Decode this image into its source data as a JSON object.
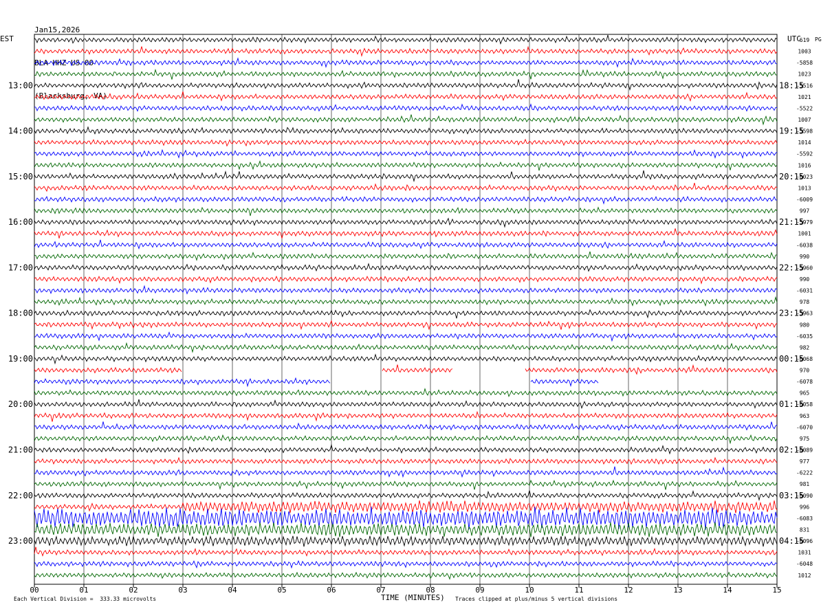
{
  "header": {
    "date": "Jan15,2026",
    "station": "BLA HHZ US 00",
    "location": "(Blacksburg, VA)"
  },
  "labels": {
    "left_timezone": "EST",
    "right_timezone": "UTC",
    "right_column": "PG"
  },
  "footer": {
    "division": "Each Vertical Division =  333.33 microvolts",
    "xlabel": "TIME (MINUTES)",
    "clip_note": "Traces clipped at plus/minus 5 vertical divisions"
  },
  "colors": {
    "trace_cycle": [
      "#000000",
      "#ff0000",
      "#0000ff",
      "#006600"
    ],
    "grid": "#000000",
    "background": "#ffffff"
  },
  "chart_data": {
    "type": "line",
    "subtype": "helicorder",
    "title": "",
    "xlabel": "TIME (MINUTES)",
    "ylabel": "",
    "xlim": [
      0,
      15
    ],
    "x_ticks": [
      "00",
      "01",
      "02",
      "03",
      "04",
      "05",
      "06",
      "07",
      "08",
      "09",
      "10",
      "11",
      "12",
      "13",
      "14",
      "15"
    ],
    "minutes_per_line": 15,
    "line_count": 48,
    "grid": true,
    "left_hour_labels": [
      "13:00",
      "14:00",
      "15:00",
      "16:00",
      "17:00",
      "18:00",
      "19:00",
      "20:00",
      "21:00",
      "22:00",
      "23:00"
    ],
    "right_hour_labels": [
      "18:15",
      "19:15",
      "20:15",
      "21:15",
      "22:15",
      "23:15",
      "00:15",
      "01:15",
      "02:15",
      "03:15",
      "04:15"
    ],
    "hour_label_first_line": 4,
    "lines_per_hour": 4,
    "right_values": [
      "619",
      "1003",
      "-5858",
      "1023",
      "-5516",
      "1021",
      "-5522",
      "1007",
      "-5598",
      "1014",
      "-5592",
      "1016",
      "-6023",
      "1013",
      "-6009",
      "997",
      "-5979",
      "1001",
      "-6038",
      "990",
      "-5960",
      "990",
      "-6031",
      "978",
      "-5963",
      "980",
      "-6035",
      "982",
      "-6068",
      "970",
      "-6078",
      "965",
      "-6058",
      "963",
      "-6070",
      "975",
      "-6089",
      "977",
      "-6222",
      "981",
      "-6090",
      "996",
      "-6083",
      "831",
      "-6096",
      "1031",
      "-6048",
      "1012"
    ],
    "gaps_minutes": [
      {
        "line": 29,
        "from": 3.0,
        "to": 7.0
      },
      {
        "line": 29,
        "from": 8.45,
        "to": 9.9
      },
      {
        "line": 30,
        "from": 6.0,
        "to": 10.0
      },
      {
        "line": 30,
        "from": 11.4,
        "to": 15.0
      }
    ],
    "event": {
      "start_line": 41,
      "start_minute": 3.0,
      "description_lines": [
        41,
        42,
        43
      ]
    }
  }
}
